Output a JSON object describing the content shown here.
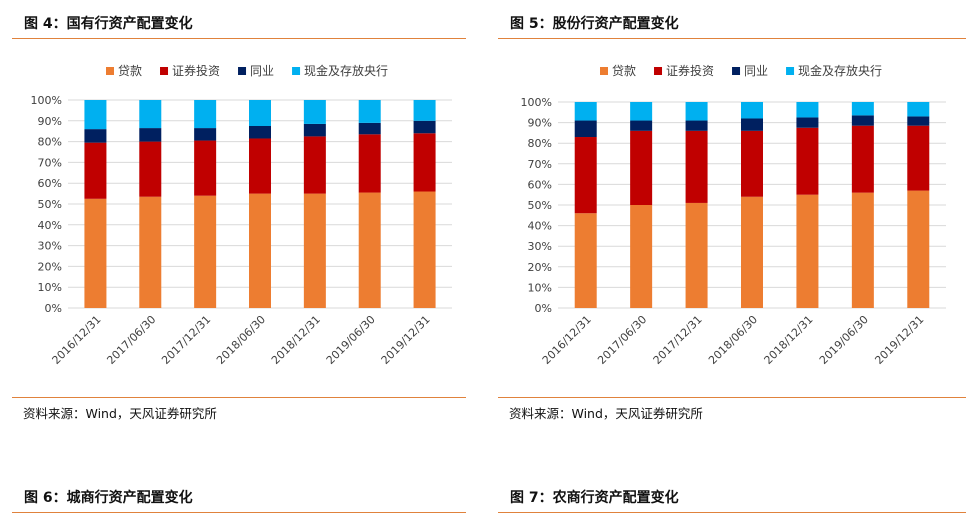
{
  "figures": [
    {
      "title": "图 4：国有行资产配置变化",
      "source": "资料来源：Wind，天风证券研究所"
    },
    {
      "title": "图 5：股份行资产配置变化",
      "source": "资料来源：Wind，天风证券研究所"
    },
    {
      "title": "图 6：城商行资产配置变化"
    },
    {
      "title": "图 7：农商行资产配置变化"
    }
  ],
  "colors": {
    "rule": "#e0823c",
    "grid": "#d9d9d9"
  },
  "chart_data": [
    {
      "type": "bar",
      "stacked": true,
      "categories": [
        "2016/12/31",
        "2017/06/30",
        "2017/12/31",
        "2018/06/30",
        "2018/12/31",
        "2019/06/30",
        "2019/12/31"
      ],
      "yticks": [
        "0%",
        "10%",
        "20%",
        "30%",
        "40%",
        "50%",
        "60%",
        "70%",
        "80%",
        "90%",
        "100%"
      ],
      "ylim": [
        0,
        100
      ],
      "legend_position": "top",
      "series": [
        {
          "name": "贷款",
          "color": "#ed7d31",
          "values": [
            52.5,
            53.5,
            54,
            55,
            55,
            55.5,
            56
          ]
        },
        {
          "name": "证券投资",
          "color": "#c00000",
          "values": [
            27,
            26.5,
            26.5,
            26.5,
            27.5,
            28,
            28
          ]
        },
        {
          "name": "同业",
          "color": "#002060",
          "values": [
            6.5,
            6.5,
            6,
            6,
            6,
            5.5,
            6
          ]
        },
        {
          "name": "现金及存放央行",
          "color": "#00b0f0",
          "values": [
            14,
            13.5,
            13.5,
            12.5,
            11.5,
            11,
            10
          ]
        }
      ]
    },
    {
      "type": "bar",
      "stacked": true,
      "categories": [
        "2016/12/31",
        "2017/06/30",
        "2017/12/31",
        "2018/06/30",
        "2018/12/31",
        "2019/06/30",
        "2019/12/31"
      ],
      "yticks": [
        "0%",
        "10%",
        "20%",
        "30%",
        "40%",
        "50%",
        "60%",
        "70%",
        "80%",
        "90%",
        "100%"
      ],
      "ylim": [
        0,
        100
      ],
      "legend_position": "top",
      "series": [
        {
          "name": "贷款",
          "color": "#ed7d31",
          "values": [
            46,
            50,
            51,
            54,
            55,
            56,
            57
          ]
        },
        {
          "name": "证券投资",
          "color": "#c00000",
          "values": [
            37,
            36,
            35,
            32,
            32.5,
            32.5,
            31.5
          ]
        },
        {
          "name": "同业",
          "color": "#002060",
          "values": [
            8,
            5,
            5,
            6,
            5,
            5,
            4.5
          ]
        },
        {
          "name": "现金及存放央行",
          "color": "#00b0f0",
          "values": [
            9,
            9,
            9,
            8,
            7.5,
            6.5,
            7
          ]
        }
      ]
    }
  ]
}
